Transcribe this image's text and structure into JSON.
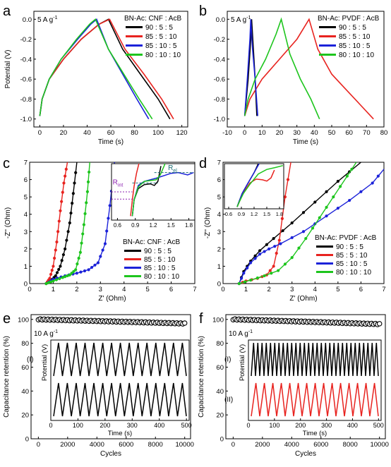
{
  "colors": {
    "black": "#000000",
    "red": "#e8231f",
    "blue": "#1c22d9",
    "green": "#1dc51d",
    "teal": "#1a6e74",
    "purple": "#8b1fb0"
  },
  "chart_data": [
    {
      "panel": "a",
      "type": "line",
      "annotation": "5 A g",
      "annotation_sup": "-1",
      "legend_title": "BN-Ac: CNF : AcB",
      "xlabel": "Time (s)",
      "ylabel": "Potential (V)",
      "xlim": [
        -5,
        125
      ],
      "ylim": [
        -1.08,
        0.08
      ],
      "xticks": [
        0,
        20,
        40,
        60,
        80,
        100,
        120
      ],
      "yticks": [
        -1.0,
        -0.8,
        -0.6,
        -0.4,
        -0.2,
        0.0
      ],
      "ytick_labels": [
        "-1.0",
        "-0.8",
        "-0.6",
        "-0.4",
        "-0.2",
        "0.0"
      ],
      "series": [
        {
          "name": "90 : 5 : 5",
          "color": "black",
          "x": [
            0,
            2,
            8,
            20,
            35,
            50,
            58,
            70,
            85,
            100,
            110
          ],
          "y": [
            -0.97,
            -0.8,
            -0.6,
            -0.4,
            -0.2,
            -0.05,
            0.0,
            -0.3,
            -0.55,
            -0.8,
            -1.0
          ]
        },
        {
          "name": "85 : 5 : 10",
          "color": "red",
          "x": [
            0,
            2,
            8,
            20,
            35,
            50,
            59,
            72,
            88,
            103,
            113
          ],
          "y": [
            -0.97,
            -0.8,
            -0.6,
            -0.4,
            -0.2,
            -0.05,
            0.0,
            -0.3,
            -0.55,
            -0.8,
            -1.0
          ]
        },
        {
          "name": "85 : 10 : 5",
          "color": "blue",
          "x": [
            0,
            2,
            8,
            18,
            32,
            43,
            48,
            58,
            70,
            82,
            92
          ],
          "y": [
            -0.97,
            -0.8,
            -0.6,
            -0.4,
            -0.2,
            -0.05,
            0.0,
            -0.3,
            -0.55,
            -0.8,
            -1.0
          ]
        },
        {
          "name": "80 : 10 : 10",
          "color": "green",
          "x": [
            0,
            2,
            8,
            18,
            31,
            42,
            47,
            58,
            71,
            84,
            95
          ],
          "y": [
            -0.97,
            -0.8,
            -0.6,
            -0.4,
            -0.2,
            -0.05,
            0.0,
            -0.3,
            -0.55,
            -0.8,
            -1.0
          ]
        }
      ]
    },
    {
      "panel": "b",
      "type": "line",
      "annotation": "5 A g",
      "annotation_sup": "-1",
      "legend_title": "BN-Ac: PVDF : AcB",
      "xlabel": "Time (s)",
      "ylabel": "",
      "xlim": [
        -10,
        80
      ],
      "ylim": [
        -1.08,
        0.08
      ],
      "xticks": [
        -10,
        0,
        10,
        20,
        30,
        40,
        50,
        60,
        70,
        80
      ],
      "yticks": [
        -1.0,
        -0.8,
        -0.6,
        -0.4,
        -0.2,
        0.0
      ],
      "ytick_labels": [
        "-1.0",
        "-0.8",
        "-0.6",
        "-0.4",
        "-0.2",
        "0.0"
      ],
      "series": [
        {
          "name": "90 : 5 : 5",
          "color": "black",
          "x": [
            0,
            2,
            3.5,
            4,
            5,
            6,
            7
          ],
          "y": [
            -0.97,
            -0.6,
            -0.2,
            0.0,
            -0.3,
            -0.6,
            -0.97
          ]
        },
        {
          "name": "85 : 5 : 10",
          "color": "red",
          "x": [
            0,
            3,
            10,
            20,
            30,
            37,
            42,
            50,
            58,
            66,
            74
          ],
          "y": [
            -0.97,
            -0.8,
            -0.6,
            -0.4,
            -0.2,
            0.0,
            -0.3,
            -0.55,
            -0.7,
            -0.85,
            -1.0
          ]
        },
        {
          "name": "85 : 10 : 5",
          "color": "blue",
          "x": [
            0,
            1.5,
            3,
            3.5,
            4.5,
            6,
            7.5
          ],
          "y": [
            -0.97,
            -0.6,
            -0.2,
            0.0,
            -0.3,
            -0.6,
            -0.97
          ]
        },
        {
          "name": "80 : 10 : 10",
          "color": "green",
          "x": [
            0,
            2,
            6,
            12,
            18,
            21,
            26,
            32,
            38,
            43
          ],
          "y": [
            -0.97,
            -0.8,
            -0.6,
            -0.4,
            -0.15,
            0.0,
            -0.35,
            -0.6,
            -0.8,
            -1.0
          ]
        }
      ]
    },
    {
      "panel": "c",
      "type": "line",
      "legend_title": "BN-Ac: CNF : AcB",
      "xlabel": "Z' (Ohm)",
      "ylabel": "-Z'' (Ohm)",
      "xlim": [
        0,
        7
      ],
      "ylim": [
        0,
        7
      ],
      "xticks": [
        0,
        1,
        2,
        3,
        4,
        5,
        6,
        7
      ],
      "yticks": [
        0,
        1,
        2,
        3,
        4,
        5,
        6,
        7
      ],
      "series": [
        {
          "name": "90 : 5 : 5",
          "color": "black",
          "x": [
            0.7,
            0.9,
            1.1,
            1.3,
            1.5,
            1.7,
            1.85,
            2.0
          ],
          "y": [
            0,
            0.15,
            0.45,
            1.0,
            2.0,
            3.5,
            5.2,
            7.0
          ]
        },
        {
          "name": "85 : 5 : 10",
          "color": "red",
          "x": [
            0.7,
            0.85,
            1.0,
            1.15,
            1.3,
            1.45,
            1.6
          ],
          "y": [
            0,
            0.3,
            1.0,
            2.4,
            4.2,
            5.8,
            7.0
          ]
        },
        {
          "name": "85 : 10 : 5",
          "color": "blue",
          "x": [
            0.7,
            1.0,
            1.5,
            2.0,
            2.5,
            2.9,
            3.2,
            3.4,
            3.6
          ],
          "y": [
            0,
            0.25,
            0.45,
            0.6,
            0.8,
            1.2,
            2.3,
            4.5,
            7.0
          ]
        },
        {
          "name": "80 : 10 : 10",
          "color": "green",
          "x": [
            0.7,
            1.0,
            1.4,
            1.7,
            1.95,
            2.15,
            2.3,
            2.45,
            2.55
          ],
          "y": [
            0,
            0.15,
            0.35,
            0.5,
            0.8,
            1.8,
            3.4,
            5.3,
            7.0
          ]
        }
      ],
      "inset": {
        "xlim": [
          0.5,
          1.9
        ],
        "ylim": [
          0,
          7
        ],
        "xticks": [
          0.6,
          0.9,
          1.2,
          1.5,
          1.8
        ],
        "xtick_labels": [
          "0.6",
          "0.9",
          "1.2",
          "1.5",
          "1.8"
        ],
        "labels": [
          {
            "text": "R",
            "sub": "el"
          },
          {
            "text": "R",
            "sub": "int"
          }
        ],
        "series": [
          {
            "color": "black",
            "x": [
              0.85,
              0.88,
              0.95,
              1.05,
              1.15,
              1.22,
              1.28,
              1.33
            ],
            "y": [
              0.5,
              2.5,
              3.9,
              4.4,
              4.5,
              4.3,
              4.8,
              6.7
            ]
          },
          {
            "color": "red",
            "x": [
              0.82,
              0.85,
              0.88,
              0.92,
              0.96
            ],
            "y": [
              0.5,
              2.5,
              4.2,
              5.8,
              7.0
            ]
          },
          {
            "color": "blue",
            "x": [
              0.85,
              0.88,
              0.95,
              1.05,
              1.25,
              1.5,
              1.62,
              1.78,
              1.88
            ],
            "y": [
              0.5,
              2.5,
              4.3,
              4.8,
              5.2,
              5.8,
              5.9,
              5.6,
              5.9
            ]
          },
          {
            "color": "green",
            "x": [
              0.85,
              0.88,
              0.95,
              1.05,
              1.15,
              1.25,
              1.32,
              1.4
            ],
            "y": [
              0.5,
              2.5,
              4.1,
              4.8,
              4.9,
              5.0,
              5.6,
              7.0
            ]
          }
        ]
      }
    },
    {
      "panel": "d",
      "type": "line",
      "legend_title": "BN-Ac: PVDF : AcB",
      "xlabel": "Z' (Ohm)",
      "ylabel": "-Z'' (Ohm)",
      "xlim": [
        0,
        7
      ],
      "ylim": [
        0,
        7
      ],
      "xticks": [
        0,
        1,
        2,
        3,
        4,
        5,
        6,
        7
      ],
      "yticks": [
        0,
        1,
        2,
        3,
        4,
        5,
        6,
        7
      ],
      "series": [
        {
          "name": "90 : 5 : 5",
          "color": "black",
          "x": [
            0.7,
            0.9,
            1.2,
            1.6,
            2.2,
            3.0,
            4.0,
            5.0,
            6.0
          ],
          "y": [
            0,
            0.7,
            1.3,
            1.9,
            2.6,
            3.5,
            4.7,
            5.9,
            7.0
          ]
        },
        {
          "name": "85 : 5 : 10",
          "color": "red",
          "x": [
            0.7,
            1.0,
            1.5,
            1.9,
            2.2,
            2.45,
            2.7,
            2.95
          ],
          "y": [
            0,
            0.15,
            0.3,
            0.5,
            1.0,
            2.5,
            5.0,
            7.0
          ]
        },
        {
          "name": "85 : 10 : 5",
          "color": "blue",
          "x": [
            0.7,
            0.9,
            1.2,
            1.6,
            2.0,
            2.5,
            3.5,
            4.5,
            5.5,
            6.5,
            7.0
          ],
          "y": [
            0,
            0.6,
            1.2,
            1.7,
            2.0,
            2.3,
            3.0,
            3.9,
            4.8,
            5.8,
            6.6
          ]
        },
        {
          "name": "80 : 10 : 10",
          "color": "green",
          "x": [
            0.7,
            1.2,
            1.8,
            2.4,
            3.0,
            3.6,
            4.2,
            4.8,
            5.4,
            5.8
          ],
          "y": [
            0,
            0.2,
            0.45,
            0.75,
            1.5,
            2.6,
            3.8,
            5.0,
            6.2,
            7.0
          ]
        }
      ],
      "inset": {
        "xlim": [
          0.5,
          1.9
        ],
        "ylim": [
          0,
          7
        ],
        "xticks": [
          0.6,
          0.9,
          1.2,
          1.5,
          1.8
        ],
        "xtick_labels": [
          "0.6",
          "0.9",
          "1.2",
          "1.5",
          "1.8"
        ],
        "series": [
          {
            "color": "black",
            "x": [
              0.8,
              0.85,
              0.92,
              1.05,
              1.2,
              1.3
            ],
            "y": [
              0.3,
              1.2,
              2.4,
              3.9,
              5.6,
              7.0
            ]
          },
          {
            "color": "red",
            "x": [
              0.8,
              0.86,
              0.95,
              1.1,
              1.25,
              1.4,
              1.5,
              1.6,
              1.68
            ],
            "y": [
              0.3,
              1.2,
              2.5,
              4.0,
              4.6,
              4.5,
              4.3,
              4.8,
              6.0
            ]
          },
          {
            "color": "blue",
            "x": [
              0.8,
              0.85,
              0.92,
              1.05,
              1.2,
              1.32
            ],
            "y": [
              0.3,
              1.2,
              2.4,
              3.9,
              5.6,
              7.0
            ]
          },
          {
            "color": "green",
            "x": [
              0.8,
              0.86,
              0.95,
              1.1,
              1.3,
              1.5,
              1.7,
              1.88
            ],
            "y": [
              0.3,
              1.2,
              2.4,
              3.8,
              5.4,
              6.1,
              6.4,
              6.7
            ]
          }
        ]
      }
    },
    {
      "panel": "e",
      "type": "scatter",
      "annotation": "10 A g",
      "annotation_sup": "-1",
      "xlabel": "Cycles",
      "ylabel": "Capacitance retention (%)",
      "xlim": [
        -500,
        10400
      ],
      "ylim": [
        0,
        104
      ],
      "xticks": [
        0,
        2000,
        4000,
        6000,
        8000,
        10000
      ],
      "yticks": [
        0,
        20,
        40,
        60,
        80,
        100
      ],
      "retention": {
        "start": 100,
        "end": 96.5,
        "n_markers": 76
      },
      "inset": {
        "xlabel": "Time (s)",
        "ylabel": "Potential (V)",
        "xlim": [
          0,
          510
        ],
        "xticks": [
          0,
          100,
          200,
          300,
          400,
          500
        ],
        "traces": [
          {
            "label": "(I)",
            "color": "black",
            "cycles": 15
          },
          {
            "label": "",
            "color": "black",
            "cycles": 15
          }
        ]
      }
    },
    {
      "panel": "f",
      "type": "scatter",
      "annotation": "10 A g",
      "annotation_sup": "-1",
      "xlabel": "Cycles",
      "ylabel": "Capacitance retention (%)",
      "xlim": [
        -500,
        10400
      ],
      "ylim": [
        0,
        104
      ],
      "xticks": [
        0,
        2000,
        4000,
        6000,
        8000,
        10000
      ],
      "yticks": [
        0,
        20,
        40,
        60,
        80,
        100
      ],
      "retention": {
        "start": 100,
        "end": 96,
        "n_markers": 76
      },
      "inset": {
        "xlabel": "Time (s)",
        "ylabel": "Potential (V)",
        "xlim": [
          0,
          510
        ],
        "xticks": [
          0,
          100,
          200,
          300,
          400,
          500
        ],
        "traces": [
          {
            "label": "(I)",
            "color": "black",
            "cycles": 30
          },
          {
            "label": "(II)",
            "color": "red",
            "cycles": 15
          }
        ]
      }
    }
  ]
}
